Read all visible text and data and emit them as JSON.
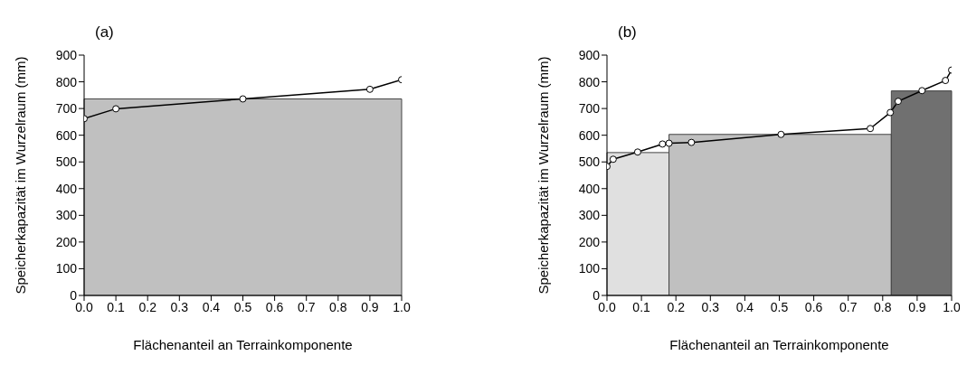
{
  "chart_data": [
    {
      "type": "histogram",
      "title": "(a)",
      "xlabel": "Flächenanteil an Terrainkomponente",
      "ylabel": "Speicherkapazität im Wurzelraum (mm)",
      "bins": [
        0,
        1
      ],
      "values": [
        736
      ],
      "colors": [
        "#c0c0c0"
      ],
      "series": [
        {
          "type": "line",
          "color": "#000000",
          "marker": "circle",
          "x": [
            0,
            0.1,
            0.5,
            0.9,
            1.0
          ],
          "values": [
            662,
            699,
            736,
            772,
            808
          ]
        }
      ],
      "xlim": [
        0,
        1
      ],
      "ylim": [
        0,
        900
      ],
      "xticks": [
        {
          "value": 0,
          "label": "0.0"
        },
        {
          "value": 0.1,
          "label": "0.1"
        },
        {
          "value": 0.2,
          "label": "0.2"
        },
        {
          "value": 0.3,
          "label": "0.3"
        },
        {
          "value": 0.4,
          "label": "0.4"
        },
        {
          "value": 0.5,
          "label": "0.5"
        },
        {
          "value": 0.6,
          "label": "0.6"
        },
        {
          "value": 0.7,
          "label": "0.7"
        },
        {
          "value": 0.8,
          "label": "0.8"
        },
        {
          "value": 0.9,
          "label": "0.9"
        },
        {
          "value": 1,
          "label": "1.0"
        }
      ],
      "yticks": [
        0,
        100,
        200,
        300,
        400,
        500,
        600,
        700,
        800,
        900
      ]
    },
    {
      "type": "histogram",
      "title": "(b)",
      "xlabel": "Flächenanteil an Terrainkomponente",
      "ylabel": "Speicherkapazität im Wurzelraum (mm)",
      "bins": [
        0,
        0.18,
        0.825,
        1.0
      ],
      "values": [
        535,
        603,
        766
      ],
      "colors": [
        "#e0e0e0",
        "#c0c0c0",
        "#707070"
      ],
      "series": [
        {
          "type": "line",
          "color": "#000000",
          "marker": "circle",
          "x": [
            0,
            0.018,
            0.089,
            0.161,
            0.18,
            0.245,
            0.505,
            0.764,
            0.822,
            0.845,
            0.914,
            0.982,
            1.0
          ],
          "values": [
            483,
            510,
            537,
            567,
            570,
            573,
            603,
            625,
            685,
            727,
            767,
            805,
            844
          ]
        }
      ],
      "xlim": [
        0,
        1
      ],
      "ylim": [
        0,
        900
      ],
      "xticks": [
        {
          "value": 0,
          "label": "0.0"
        },
        {
          "value": 0.1,
          "label": "0.1"
        },
        {
          "value": 0.2,
          "label": "0.2"
        },
        {
          "value": 0.3,
          "label": "0.3"
        },
        {
          "value": 0.4,
          "label": "0.4"
        },
        {
          "value": 0.5,
          "label": "0.5"
        },
        {
          "value": 0.6,
          "label": "0.6"
        },
        {
          "value": 0.7,
          "label": "0.7"
        },
        {
          "value": 0.8,
          "label": "0.8"
        },
        {
          "value": 0.9,
          "label": "0.9"
        },
        {
          "value": 1,
          "label": "1.0"
        }
      ],
      "yticks": [
        0,
        100,
        200,
        300,
        400,
        500,
        600,
        700,
        800,
        900
      ]
    }
  ]
}
